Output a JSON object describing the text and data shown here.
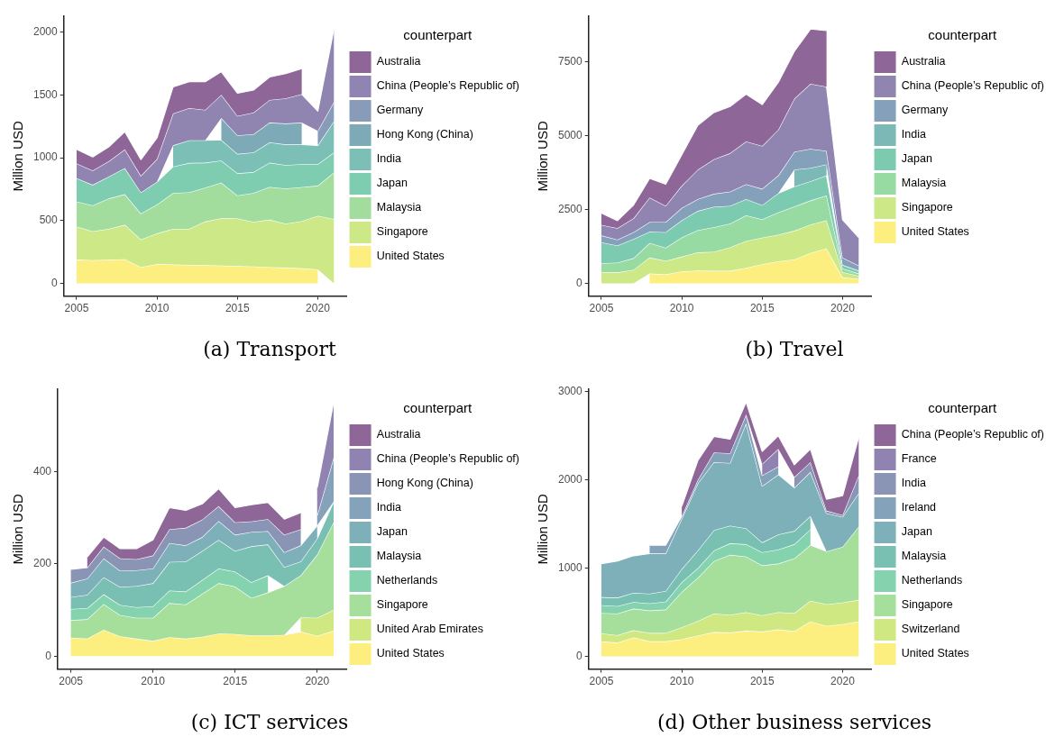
{
  "chart_data": [
    {
      "type": "area",
      "stacked": true,
      "title": "(a) Transport",
      "ylabel": "Million USD",
      "legend_title": "counterpart",
      "legend": "right",
      "x": [
        2005,
        2006,
        2007,
        2008,
        2009,
        2010,
        2011,
        2012,
        2013,
        2014,
        2015,
        2016,
        2017,
        2018,
        2019,
        2020,
        2021
      ],
      "xlim": [
        2004.2,
        2021.8
      ],
      "xticks": [
        2005,
        2010,
        2015,
        2020
      ],
      "ylim": [
        -101,
        2126
      ],
      "yticks": [
        0,
        500,
        1000,
        1500,
        2000
      ],
      "series": [
        {
          "name": "United States",
          "color": "#fdee80",
          "values": [
            190,
            185,
            188,
            192,
            130,
            155,
            150,
            148,
            145,
            142,
            138,
            135,
            130,
            125,
            120,
            112,
            null
          ]
        },
        {
          "name": "Singapore",
          "color": "#cde886",
          "values": [
            262,
            230,
            247,
            274,
            220,
            243,
            285,
            287,
            348,
            377,
            379,
            355,
            377,
            351,
            375,
            427,
            512
          ]
        },
        {
          "name": "Malaysia",
          "color": "#a2dd9e",
          "values": [
            200,
            206,
            241,
            244,
            206,
            230,
            285,
            290,
            270,
            283,
            183,
            230,
            261,
            280,
            271,
            239,
            370
          ]
        },
        {
          "name": "Japan",
          "color": "#7fcdb0",
          "values": [
            186,
            164,
            174,
            208,
            169,
            181,
            210,
            234,
            198,
            176,
            177,
            166,
            193,
            186,
            183,
            171,
            161
          ]
        },
        {
          "name": "India",
          "color": "#7bbfb6",
          "values": [
            null,
            null,
            null,
            null,
            null,
            null,
            169,
            181,
            179,
            165,
            154,
            157,
            162,
            164,
            157,
            150,
            249
          ]
        },
        {
          "name": "Hong Kong (China)",
          "color": "#7eaab8",
          "values": [
            null,
            null,
            null,
            null,
            null,
            null,
            null,
            null,
            null,
            173,
            148,
            145,
            157,
            167,
            174,
            null,
            null
          ]
        },
        {
          "name": "Germany",
          "color": "#889cba",
          "values": [
            null,
            null,
            null,
            null,
            null,
            null,
            null,
            null,
            null,
            null,
            null,
            null,
            null,
            null,
            null,
            116,
            152
          ]
        },
        {
          "name": "China (People’s Republic of)",
          "color": "#9084b1",
          "values": [
            117,
            114,
            123,
            150,
            132,
            181,
            254,
            256,
            242,
            186,
            154,
            172,
            181,
            200,
            227,
            157,
            581
          ]
        },
        {
          "name": "Australia",
          "color": "#8e6698",
          "values": [
            113,
            108,
            114,
            140,
            129,
            169,
            212,
            210,
            224,
            184,
            181,
            179,
            182,
            198,
            203,
            null,
            null
          ]
        }
      ]
    },
    {
      "type": "area",
      "stacked": true,
      "title": "(b) Travel",
      "ylabel": "Million USD",
      "legend_title": "counterpart",
      "legend": "right",
      "x": [
        2005,
        2006,
        2007,
        2008,
        2009,
        2010,
        2011,
        2012,
        2013,
        2014,
        2015,
        2016,
        2017,
        2018,
        2019,
        2020,
        2021
      ],
      "xlim": [
        2004.2,
        2021.8
      ],
      "xticks": [
        2005,
        2010,
        2015,
        2020
      ],
      "ylim": [
        -430,
        9030
      ],
      "yticks": [
        0,
        2500,
        5000,
        7500
      ],
      "series": [
        {
          "name": "United States",
          "color": "#fdee80",
          "values": [
            null,
            null,
            null,
            334,
            303,
            404,
            435,
            425,
            425,
            526,
            647,
            748,
            809,
            1031,
            1183,
            202,
            152
          ]
        },
        {
          "name": "Singapore",
          "color": "#cce887",
          "values": [
            380,
            370,
            460,
            540,
            460,
            500,
            615,
            645,
            795,
            905,
            900,
            900,
            970,
            960,
            950,
            180,
            100
          ]
        },
        {
          "name": "Malaysia",
          "color": "#98dba2",
          "values": [
            300,
            330,
            390,
            490,
            440,
            650,
            750,
            830,
            800,
            870,
            620,
            750,
            820,
            810,
            840,
            120,
            80
          ]
        },
        {
          "name": "Japan",
          "color": "#7ccbb1",
          "values": [
            710,
            580,
            650,
            380,
            530,
            580,
            650,
            690,
            600,
            550,
            480,
            650,
            680,
            650,
            680,
            120,
            100
          ]
        },
        {
          "name": "India",
          "color": "#7bb8b6",
          "values": [
            null,
            null,
            null,
            null,
            null,
            null,
            null,
            null,
            null,
            null,
            null,
            null,
            570,
            450,
            370,
            null,
            null
          ]
        },
        {
          "name": "Germany",
          "color": "#85a0bb",
          "values": [
            230,
            200,
            230,
            330,
            340,
            420,
            400,
            440,
            480,
            500,
            550,
            600,
            600,
            650,
            460,
            250,
            170
          ]
        },
        {
          "name": "China (People’s Republic of)",
          "color": "#9084b1",
          "values": [
            355,
            390,
            470,
            830,
            550,
            750,
            1000,
            1170,
            1300,
            1450,
            1450,
            1550,
            1800,
            2200,
            2170,
            1280,
            950
          ]
        },
        {
          "name": "Australia",
          "color": "#8e6698",
          "values": [
            405,
            250,
            450,
            650,
            730,
            1050,
            1500,
            1580,
            1580,
            1600,
            1400,
            1600,
            1600,
            1850,
            1900,
            null,
            null
          ]
        }
      ]
    },
    {
      "type": "area",
      "stacked": true,
      "title": "(c) ICT services",
      "ylabel": "Million USD",
      "legend_title": "counterpart",
      "legend": "right",
      "x": [
        2005,
        2006,
        2007,
        2008,
        2009,
        2010,
        2011,
        2012,
        2013,
        2014,
        2015,
        2016,
        2017,
        2018,
        2019,
        2020,
        2021
      ],
      "xlim": [
        2004.2,
        2021.8
      ],
      "xticks": [
        2005,
        2010,
        2015,
        2020
      ],
      "ylim": [
        -28,
        578
      ],
      "yticks": [
        0,
        200,
        400
      ],
      "series": [
        {
          "name": "United States",
          "color": "#fdee80",
          "values": [
            40,
            38,
            57,
            43,
            38,
            33,
            41,
            38,
            42,
            49,
            48,
            45,
            45,
            46,
            53,
            44,
            55
          ]
        },
        {
          "name": "United Arab Emirates",
          "color": "#d0e882",
          "values": [
            null,
            null,
            null,
            null,
            null,
            null,
            null,
            null,
            null,
            null,
            null,
            null,
            null,
            null,
            31,
            39,
            45
          ]
        },
        {
          "name": "Singapore",
          "color": "#a6df9c",
          "values": [
            38,
            42,
            56,
            46,
            45,
            50,
            74,
            74,
            93,
            109,
            103,
            81,
            93,
            106,
            91,
            137,
            190
          ]
        },
        {
          "name": "Netherlands",
          "color": "#84d3ae",
          "values": [
            24,
            24,
            21,
            22,
            23,
            25,
            27,
            28,
            30,
            32,
            32,
            34,
            37,
            null,
            null,
            null,
            null
          ]
        },
        {
          "name": "Malaysia",
          "color": "#79c0b3",
          "values": [
            26,
            29,
            37,
            39,
            46,
            50,
            62,
            65,
            63,
            62,
            45,
            78,
            67,
            41,
            30,
            35,
            45
          ]
        },
        {
          "name": "Japan",
          "color": "#7eb0b9",
          "values": [
            31,
            35,
            41,
            35,
            34,
            32,
            41,
            35,
            30,
            41,
            35,
            31,
            29,
            32,
            35,
            28,
            null
          ]
        },
        {
          "name": "India",
          "color": "#84a3ba",
          "values": [
            null,
            null,
            null,
            null,
            null,
            null,
            null,
            null,
            null,
            null,
            null,
            null,
            null,
            null,
            null,
            22,
            95
          ]
        },
        {
          "name": "Hong Kong (China)",
          "color": "#8a95b6",
          "values": [
            29,
            24,
            25,
            27,
            24,
            28,
            30,
            38,
            38,
            32,
            27,
            23,
            26,
            38,
            35,
            null,
            null
          ]
        },
        {
          "name": "China (People’s Republic of)",
          "color": "#9083b1",
          "values": [
            null,
            null,
            null,
            null,
            null,
            null,
            null,
            null,
            null,
            null,
            null,
            null,
            null,
            null,
            null,
            60,
            120
          ]
        },
        {
          "name": "Australia",
          "color": "#8e6698",
          "values": [
            null,
            23,
            21,
            21,
            23,
            34,
            47,
            38,
            34,
            38,
            32,
            36,
            36,
            34,
            36,
            null,
            null
          ]
        }
      ]
    },
    {
      "type": "area",
      "stacked": true,
      "title": "(d) Other business services",
      "ylabel": "Million USD",
      "legend_title": "counterpart",
      "legend": "right",
      "x": [
        2005,
        2006,
        2007,
        2008,
        2009,
        2010,
        2011,
        2012,
        2013,
        2014,
        2015,
        2016,
        2017,
        2018,
        2019,
        2020,
        2021
      ],
      "xlim": [
        2004.2,
        2021.8
      ],
      "xticks": [
        2005,
        2010,
        2015,
        2020
      ],
      "ylim": [
        -144,
        3024
      ],
      "yticks": [
        0,
        1000,
        2000,
        3000
      ],
      "series": [
        {
          "name": "United States",
          "color": "#fdee80",
          "values": [
            170,
            155,
            215,
            170,
            170,
            195,
            235,
            275,
            270,
            290,
            280,
            305,
            285,
            395,
            345,
            365,
            395
          ]
        },
        {
          "name": "Switzerland",
          "color": "#d0e882",
          "values": [
            90,
            85,
            80,
            95,
            95,
            135,
            165,
            210,
            200,
            210,
            185,
            195,
            205,
            235,
            245,
            245,
            245
          ]
        },
        {
          "name": "Singapore",
          "color": "#a6df9c",
          "values": [
            230,
            245,
            245,
            255,
            265,
            400,
            490,
            595,
            680,
            630,
            565,
            550,
            620,
            630,
            600,
            630,
            830
          ]
        },
        {
          "name": "Netherlands",
          "color": "#84d3ae",
          "values": [
            90,
            85,
            75,
            80,
            90,
            110,
            110,
            120,
            130,
            140,
            150,
            160,
            160,
            180,
            null,
            null,
            null
          ]
        },
        {
          "name": "Malaysia",
          "color": "#79c0b3",
          "values": [
            90,
            95,
            105,
            110,
            120,
            150,
            200,
            230,
            200,
            180,
            110,
            170,
            150,
            150,
            null,
            null,
            null
          ]
        },
        {
          "name": "Japan",
          "color": "#7eb0b9",
          "values": [
            380,
            415,
            420,
            455,
            425,
            570,
            760,
            770,
            710,
            1190,
            640,
            680,
            490,
            500,
            430,
            340,
            380
          ]
        },
        {
          "name": "Ireland",
          "color": "#84a3ba",
          "values": [
            null,
            null,
            null,
            95,
            95,
            30,
            40,
            110,
            110,
            100,
            120,
            90,
            null,
            null,
            null,
            null,
            null
          ]
        },
        {
          "name": "India",
          "color": "#8a95b6",
          "values": [
            null,
            null,
            null,
            null,
            null,
            null,
            null,
            null,
            null,
            null,
            null,
            null,
            120,
            110,
            30,
            20,
            200
          ]
        },
        {
          "name": "France",
          "color": "#9083b1",
          "values": [
            null,
            null,
            null,
            null,
            null,
            null,
            null,
            null,
            null,
            null,
            130,
            200,
            null,
            null,
            null,
            null,
            null
          ]
        },
        {
          "name": "China (People’s Republic of)",
          "color": "#8e6698",
          "values": [
            null,
            null,
            null,
            null,
            null,
            110,
            220,
            180,
            160,
            140,
            140,
            150,
            140,
            150,
            130,
            220,
            430
          ]
        }
      ]
    }
  ]
}
